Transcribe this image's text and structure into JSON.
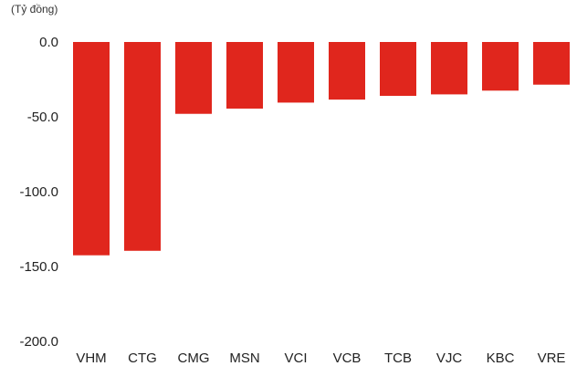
{
  "chart_data": {
    "type": "bar",
    "title": "",
    "unit_label": "(Tỷ đồng)",
    "xlabel": "",
    "ylabel": "",
    "categories": [
      "VHM",
      "CTG",
      "CMG",
      "MSN",
      "VCI",
      "VCB",
      "TCB",
      "VJC",
      "KBC",
      "VRE"
    ],
    "values": [
      -142.5,
      -139.5,
      -48.0,
      -44.5,
      -40.5,
      -38.5,
      -36.0,
      -35.0,
      -32.5,
      -28.5
    ],
    "ylim": [
      -200,
      0
    ],
    "yticks": [
      0,
      -50,
      -100,
      -150,
      -200
    ],
    "ytick_labels": [
      "0.0",
      "-50.0",
      "-100.0",
      "-150.0",
      "-200.0"
    ],
    "bar_color": "#e0261d",
    "grid": false,
    "legend": "none"
  }
}
